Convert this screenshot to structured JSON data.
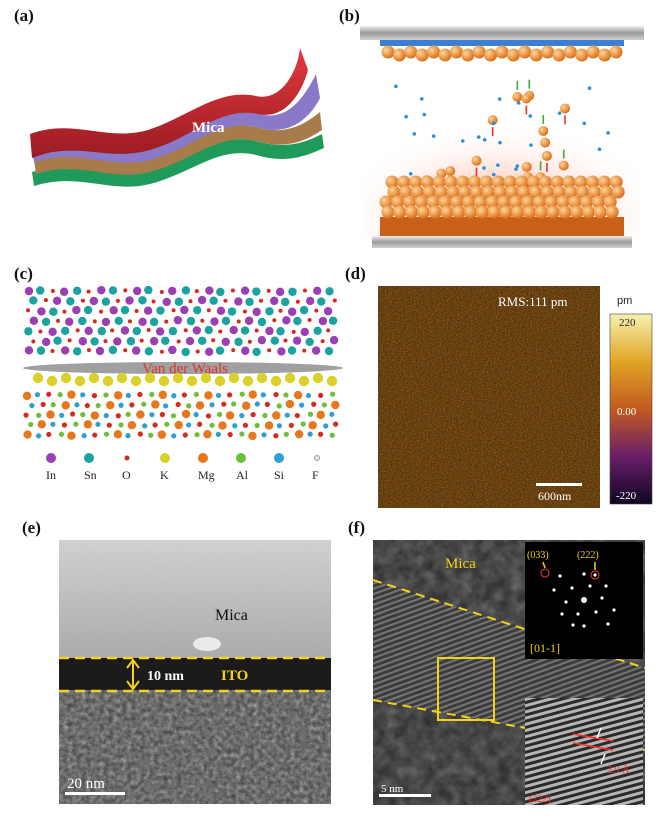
{
  "figure": {
    "panels": {
      "a": {
        "label": "(a)",
        "text": "Mica"
      },
      "b": {
        "label": "(b)"
      },
      "c": {
        "label": "(c)",
        "interface_text": "Van der Waals",
        "legend": [
          {
            "symbol": "In",
            "color": "#9b3fb5"
          },
          {
            "symbol": "Sn",
            "color": "#1aa3a0"
          },
          {
            "symbol": "O",
            "color": "#d42a1f"
          },
          {
            "symbol": "K",
            "color": "#d8d12a"
          },
          {
            "symbol": "Mg",
            "color": "#e8761c"
          },
          {
            "symbol": "Al",
            "color": "#6cbf3a"
          },
          {
            "symbol": "Si",
            "color": "#2b9fd6"
          },
          {
            "symbol": "F",
            "color": "#e6e6e6"
          }
        ]
      },
      "d": {
        "label": "(d)",
        "rms_text": "RMS:111 pm",
        "scale_bar": "600nm",
        "colorbar_unit": "pm",
        "colorbar_ticks": [
          "220",
          "0.00",
          "-220"
        ]
      },
      "e": {
        "label": "(e)",
        "mica_text": "Mica",
        "thickness_text": "10 nm",
        "ito_text": "ITO",
        "scale_bar": "20 nm"
      },
      "f": {
        "label": "(f)",
        "mica_text": "Mica",
        "fft_spots": [
          "(033)",
          "(222)"
        ],
        "zone_axis": "[01-1]",
        "dspacing_text": "2.9 Å",
        "plane_text": "(222)",
        "scale_bar": "5 nm"
      }
    }
  }
}
